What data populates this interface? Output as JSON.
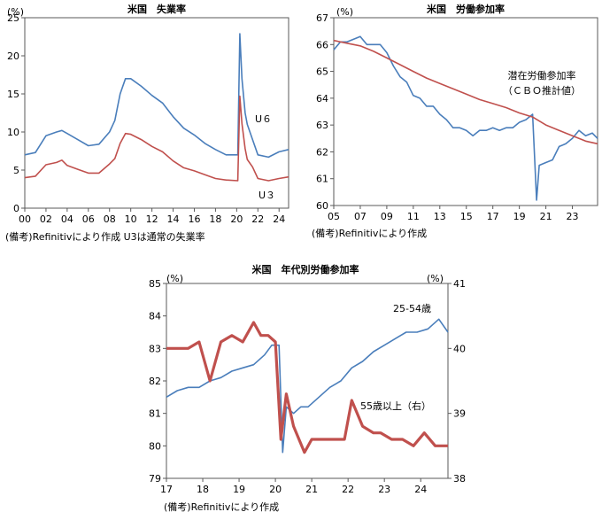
{
  "chart_data": [
    {
      "type": "line",
      "title": "米国　失業率",
      "y_unit": "(%)",
      "ylim": [
        0,
        25
      ],
      "y_ticks": [
        "0",
        "5",
        "10",
        "15",
        "20",
        "25"
      ],
      "x_ticks": [
        "00",
        "02",
        "04",
        "06",
        "08",
        "10",
        "12",
        "14",
        "16",
        "18",
        "20",
        "22",
        "24"
      ],
      "x_range": [
        2000.0,
        2024.9
      ],
      "grid": false,
      "note": "(備考)Refinitivにより作成 U3は通常の失業率",
      "series": [
        {
          "name": "U６",
          "color": "#4a7ebb",
          "x": [
            2000.0,
            2001.0,
            2002.0,
            2003.0,
            2003.5,
            2004.0,
            2005.0,
            2006.0,
            2007.0,
            2008.0,
            2008.5,
            2009.0,
            2009.5,
            2010.0,
            2011.0,
            2012.0,
            2013.0,
            2014.0,
            2015.0,
            2016.0,
            2017.0,
            2018.0,
            2019.0,
            2020.1,
            2020.3,
            2020.5,
            2020.8,
            2021.0,
            2021.5,
            2022.0,
            2023.0,
            2024.0,
            2024.9
          ],
          "values": [
            7.0,
            7.3,
            9.5,
            10.0,
            10.2,
            9.8,
            9.0,
            8.2,
            8.4,
            10.0,
            11.5,
            15.0,
            17.0,
            17.0,
            16.0,
            14.8,
            13.8,
            12.0,
            10.5,
            9.6,
            8.5,
            7.7,
            7.0,
            7.0,
            22.9,
            17.0,
            12.5,
            11.0,
            9.0,
            7.0,
            6.7,
            7.4,
            7.7
          ]
        },
        {
          "name": "U３",
          "color": "#c0504d",
          "x": [
            2000.0,
            2001.0,
            2002.0,
            2003.0,
            2003.5,
            2004.0,
            2005.0,
            2006.0,
            2007.0,
            2008.0,
            2008.5,
            2009.0,
            2009.5,
            2010.0,
            2011.0,
            2012.0,
            2013.0,
            2014.0,
            2015.0,
            2016.0,
            2017.0,
            2018.0,
            2019.0,
            2020.1,
            2020.3,
            2020.5,
            2020.8,
            2021.0,
            2021.5,
            2022.0,
            2023.0,
            2024.0,
            2024.9
          ],
          "values": [
            4.0,
            4.2,
            5.7,
            6.0,
            6.3,
            5.6,
            5.1,
            4.6,
            4.6,
            5.8,
            6.5,
            8.5,
            9.8,
            9.7,
            9.0,
            8.1,
            7.4,
            6.2,
            5.3,
            4.9,
            4.4,
            3.9,
            3.7,
            3.6,
            14.7,
            11.1,
            7.8,
            6.4,
            5.4,
            3.9,
            3.6,
            3.9,
            4.1
          ]
        }
      ],
      "labels": [
        {
          "text": "U６",
          "series": "U６"
        },
        {
          "text": "U３",
          "series": "U３"
        }
      ]
    },
    {
      "type": "line",
      "title": "米国　労働参加率",
      "y_unit": "(%)",
      "ylim": [
        60,
        67
      ],
      "y_ticks": [
        "60",
        "61",
        "62",
        "63",
        "64",
        "65",
        "66",
        "67"
      ],
      "x_ticks": [
        "05",
        "07",
        "09",
        "11",
        "13",
        "15",
        "17",
        "19",
        "21",
        "23"
      ],
      "x_range": [
        2005.0,
        2024.9
      ],
      "grid": false,
      "note": "(備考)Refinitivにより作成",
      "series": [
        {
          "name": "",
          "color": "#4a7ebb",
          "x": [
            2005.0,
            2005.5,
            2006.0,
            2006.5,
            2007.0,
            2007.5,
            2008.0,
            2008.5,
            2009.0,
            2009.5,
            2010.0,
            2010.5,
            2011.0,
            2011.5,
            2012.0,
            2012.5,
            2013.0,
            2013.5,
            2014.0,
            2014.5,
            2015.0,
            2015.5,
            2016.0,
            2016.5,
            2017.0,
            2017.5,
            2018.0,
            2018.5,
            2019.0,
            2019.5,
            2020.0,
            2020.3,
            2020.5,
            2021.0,
            2021.5,
            2022.0,
            2022.5,
            2023.0,
            2023.5,
            2024.0,
            2024.5,
            2024.9
          ],
          "values": [
            65.8,
            66.1,
            66.1,
            66.2,
            66.3,
            66.0,
            66.0,
            66.0,
            65.7,
            65.2,
            64.8,
            64.6,
            64.1,
            64.0,
            63.7,
            63.7,
            63.4,
            63.2,
            62.9,
            62.9,
            62.8,
            62.6,
            62.8,
            62.8,
            62.9,
            62.8,
            62.9,
            62.9,
            63.1,
            63.2,
            63.4,
            60.2,
            61.5,
            61.6,
            61.7,
            62.2,
            62.3,
            62.5,
            62.8,
            62.6,
            62.7,
            62.5
          ]
        },
        {
          "name": "潜在労働参加率",
          "color": "#c0504d",
          "x": [
            2005.0,
            2006.0,
            2007.0,
            2008.0,
            2009.0,
            2010.0,
            2011.0,
            2012.0,
            2013.0,
            2014.0,
            2015.0,
            2016.0,
            2017.0,
            2018.0,
            2019.0,
            2020.0,
            2021.0,
            2022.0,
            2023.0,
            2024.0,
            2024.9
          ],
          "values": [
            66.15,
            66.05,
            65.95,
            65.75,
            65.5,
            65.25,
            65.0,
            64.75,
            64.55,
            64.35,
            64.15,
            63.95,
            63.8,
            63.65,
            63.45,
            63.3,
            63.0,
            62.8,
            62.6,
            62.4,
            62.3
          ]
        }
      ],
      "labels": [
        {
          "text": "潜在労働参加率",
          "series": "潜在労働参加率"
        },
        {
          "text": "（ＣＢＯ推計値）",
          "series": "潜在労働参加率"
        }
      ]
    },
    {
      "type": "line",
      "title": "米国　年代別労働参加率",
      "y_unit": "(%)",
      "ylim": [
        79,
        85
      ],
      "y_ticks": [
        "79",
        "80",
        "81",
        "82",
        "83",
        "84",
        "85"
      ],
      "y2_unit": "(%)",
      "y2lim": [
        38,
        41
      ],
      "y2_ticks": [
        "38",
        "39",
        "40",
        "41"
      ],
      "x_ticks": [
        "17",
        "18",
        "19",
        "20",
        "21",
        "22",
        "23",
        "24"
      ],
      "x_range": [
        2017.0,
        2024.75
      ],
      "grid": false,
      "note": "(備考)Refinitivにより作成",
      "series": [
        {
          "name": "25-54歳",
          "color": "#4a7ebb",
          "axis": "left",
          "x": [
            2017.0,
            2017.3,
            2017.6,
            2017.9,
            2018.2,
            2018.5,
            2018.8,
            2019.1,
            2019.4,
            2019.7,
            2019.9,
            2020.1,
            2020.2,
            2020.3,
            2020.5,
            2020.7,
            2020.9,
            2021.2,
            2021.5,
            2021.8,
            2022.1,
            2022.4,
            2022.7,
            2023.0,
            2023.3,
            2023.6,
            2023.9,
            2024.2,
            2024.5,
            2024.75
          ],
          "values": [
            81.5,
            81.7,
            81.8,
            81.8,
            82.0,
            82.1,
            82.3,
            82.4,
            82.5,
            82.8,
            83.1,
            83.1,
            79.8,
            81.2,
            81.0,
            81.2,
            81.2,
            81.5,
            81.8,
            82.0,
            82.4,
            82.6,
            82.9,
            83.1,
            83.3,
            83.5,
            83.5,
            83.6,
            83.9,
            83.5
          ]
        },
        {
          "name": "55歳以上（右）",
          "color": "#c0504d",
          "axis": "right",
          "x": [
            2017.0,
            2017.3,
            2017.6,
            2017.9,
            2018.2,
            2018.5,
            2018.8,
            2019.1,
            2019.4,
            2019.6,
            2019.8,
            2020.0,
            2020.15,
            2020.3,
            2020.5,
            2020.8,
            2021.0,
            2021.3,
            2021.6,
            2021.9,
            2022.1,
            2022.4,
            2022.7,
            2022.9,
            2023.2,
            2023.5,
            2023.8,
            2024.1,
            2024.4,
            2024.75
          ],
          "values": [
            40.0,
            40.0,
            40.0,
            40.1,
            39.5,
            40.1,
            40.2,
            40.1,
            40.4,
            40.2,
            40.2,
            40.1,
            38.6,
            39.3,
            38.8,
            38.4,
            38.6,
            38.6,
            38.6,
            38.6,
            39.2,
            38.8,
            38.7,
            38.7,
            38.6,
            38.6,
            38.5,
            38.7,
            38.5,
            38.5
          ]
        }
      ],
      "labels": [
        {
          "text": "25-54歳",
          "series": "25-54歳"
        },
        {
          "text": "55歳以上（右）",
          "series": "55歳以上（右）"
        }
      ]
    }
  ]
}
